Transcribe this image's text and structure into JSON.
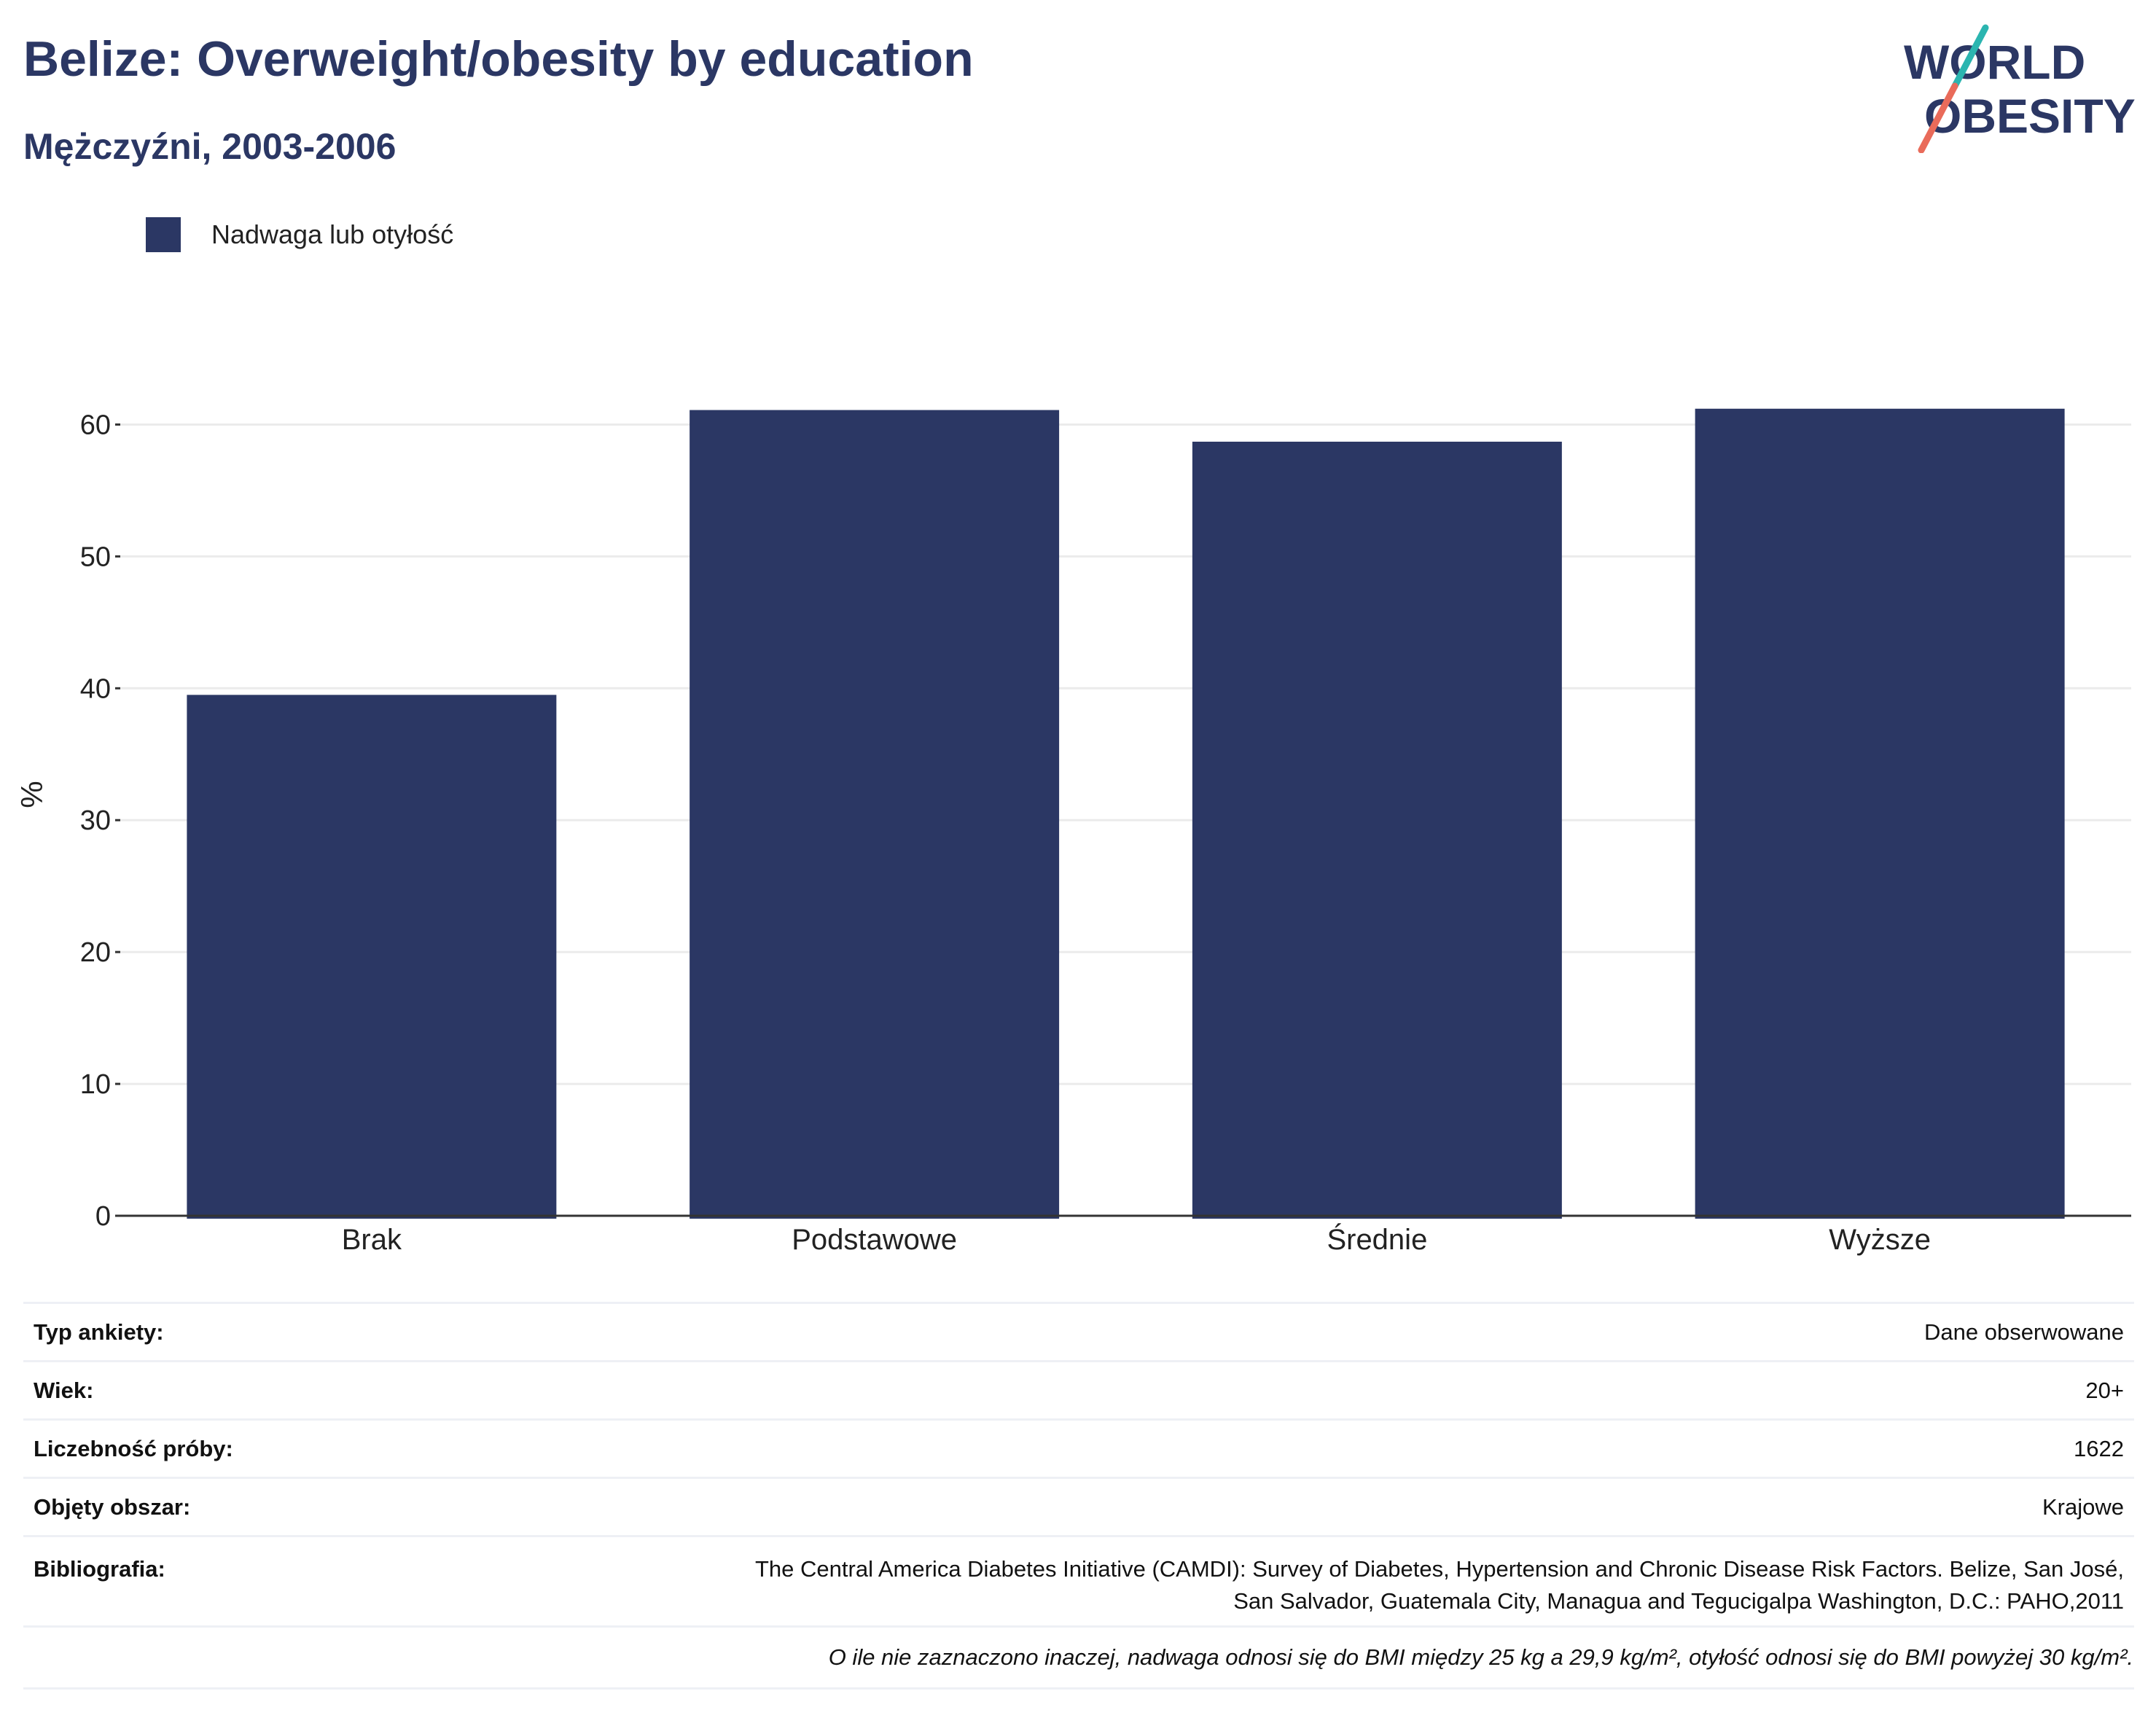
{
  "header": {
    "title": "Belize: Overweight/obesity by education",
    "subtitle": "Mężczyźni, 2003-2006"
  },
  "logo": {
    "line1": "WORLD",
    "line2": "OBESITY",
    "colors": {
      "text": "#2b3764",
      "slash_top": "#2bb5b0",
      "slash_bottom": "#e96b5a"
    }
  },
  "legend": {
    "label": "Nadwaga lub otyłość",
    "color": "#2b3764"
  },
  "chart_data": {
    "type": "bar",
    "categories": [
      "Brak",
      "Podstawowe",
      "Średnie",
      "Wyższe"
    ],
    "series": [
      {
        "name": "Nadwaga lub otyłość",
        "values": [
          39.5,
          61.1,
          58.7,
          61.2
        ],
        "color": "#2b3764"
      }
    ],
    "ylabel": "%",
    "ylim": [
      0,
      65
    ],
    "yticks": [
      0,
      10,
      20,
      30,
      40,
      50,
      60
    ],
    "grid": true,
    "legend_position": "top-left"
  },
  "info": [
    {
      "key": "Typ ankiety:",
      "value": "Dane obserwowane"
    },
    {
      "key": "Wiek:",
      "value": "20+"
    },
    {
      "key": "Liczebność próby:",
      "value": "1622"
    },
    {
      "key": "Objęty obszar:",
      "value": "Krajowe"
    },
    {
      "key": "Bibliografia:",
      "value_line1": "The Central America Diabetes Initiative (CAMDI): Survey of Diabetes, Hypertension and Chronic Disease Risk Factors. Belize, San José,",
      "value_line2": "San Salvador, Guatemala City, Managua and Tegucigalpa Washington, D.C.: PAHO,2011"
    }
  ],
  "note": "O ile nie zaznaczono inaczej, nadwaga odnosi się do BMI między 25 kg a 29,9 kg/m², otyłość odnosi się do BMI powyżej 30 kg/m²."
}
